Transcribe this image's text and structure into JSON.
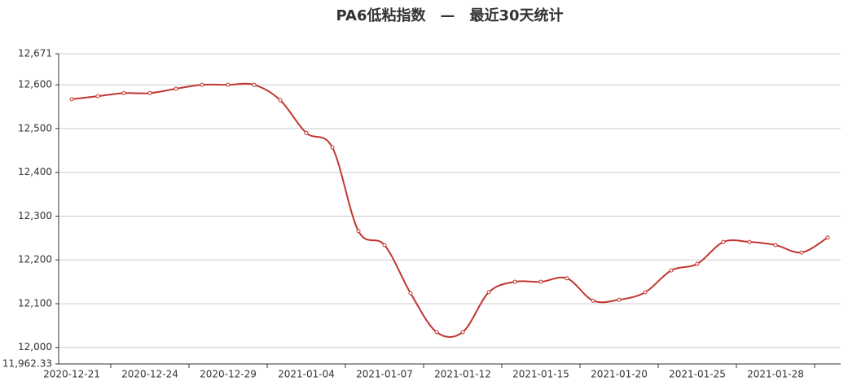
{
  "chart_data": {
    "type": "line",
    "title": "PA6低粘指数　—　最近30天统计",
    "categories": [
      "2020-12-21",
      null,
      null,
      "2020-12-24",
      null,
      null,
      "2020-12-29",
      null,
      null,
      "2021-01-04",
      null,
      null,
      "2021-01-07",
      null,
      null,
      "2021-01-12",
      null,
      null,
      "2021-01-15",
      null,
      null,
      "2021-01-20",
      null,
      null,
      "2021-01-25",
      null,
      null,
      "2021-01-28",
      null,
      null
    ],
    "series": [
      {
        "color": "#c23531",
        "values": [
          12567,
          12574,
          12581,
          12581,
          12591,
          12600,
          12600,
          12600,
          12565,
          12490,
          12457,
          12266,
          12234,
          12124,
          12035,
          12035,
          12126,
          12150,
          12150,
          12158,
          12107,
          12109,
          12126,
          12176,
          12191,
          12241,
          12241,
          12234,
          12217,
          12251
        ]
      }
    ],
    "ylim": [
      11962.33,
      12671
    ],
    "yticks": [
      {
        "value": 11962.33,
        "label": "11,962.33"
      },
      {
        "value": 12000,
        "label": "12,000"
      },
      {
        "value": 12100,
        "label": "12,100"
      },
      {
        "value": 12200,
        "label": "12,200"
      },
      {
        "value": 12300,
        "label": "12,300"
      },
      {
        "value": 12400,
        "label": "12,400"
      },
      {
        "value": 12500,
        "label": "12,500"
      },
      {
        "value": 12600,
        "label": "12,600"
      },
      {
        "value": 12671,
        "label": "12,671"
      }
    ],
    "grid": true,
    "smooth": true
  }
}
